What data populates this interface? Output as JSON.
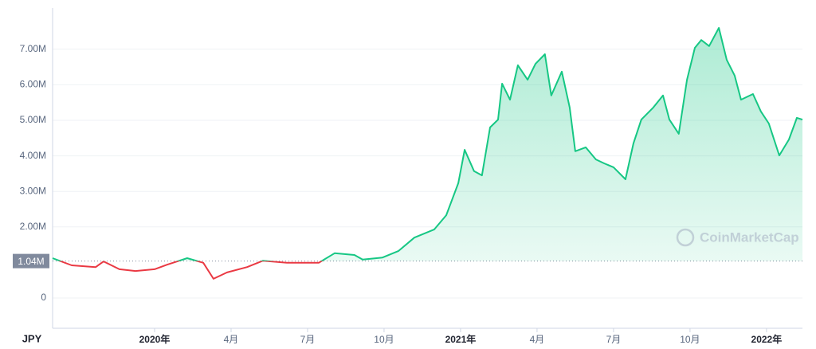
{
  "chart_data": {
    "type": "line",
    "y_axis_label": "JPY",
    "watermark": "CoinMarketCap",
    "reference_line": {
      "value": 1040000,
      "label": "1.04M"
    },
    "up_color": "#16c784",
    "down_color": "#ea3943",
    "grid": true,
    "xlim": [
      -4,
      25.41
    ],
    "xticks": [
      {
        "value": 0,
        "label": "2020年"
      },
      {
        "value": 3,
        "label": "4月"
      },
      {
        "value": 6,
        "label": "7月"
      },
      {
        "value": 9,
        "label": "10月"
      },
      {
        "value": 12,
        "label": "2021年"
      },
      {
        "value": 15,
        "label": "4月"
      },
      {
        "value": 18,
        "label": "7月"
      },
      {
        "value": 21,
        "label": "10月"
      },
      {
        "value": 24,
        "label": "2022年"
      }
    ],
    "ylim": [
      -852000,
      8161000
    ],
    "yticks": [
      0,
      {
        "value": 2000000,
        "label": "2.00M"
      },
      {
        "value": 3000000,
        "label": "3.00M"
      },
      {
        "value": 4000000,
        "label": "4.00M"
      },
      {
        "value": 5000000,
        "label": "5.00M"
      },
      {
        "value": 6000000,
        "label": "6.00M"
      },
      {
        "value": 7000000,
        "label": "7.00M"
      }
    ],
    "x": [
      -4.0,
      -3.25,
      -2.31,
      -2.0,
      -1.38,
      -0.75,
      0,
      0.5,
      1.28,
      1.91,
      2.31,
      2.84,
      3.63,
      4.25,
      5.19,
      6.44,
      7.06,
      7.84,
      8.16,
      8.94,
      9.56,
      10.19,
      10.97,
      11.44,
      11.91,
      12.16,
      12.53,
      12.84,
      13.16,
      13.47,
      13.63,
      13.94,
      14.25,
      14.63,
      14.94,
      15.31,
      15.56,
      15.97,
      16.28,
      16.5,
      16.91,
      17.31,
      17.63,
      18.0,
      18.47,
      18.78,
      19.09,
      19.56,
      19.94,
      20.19,
      20.56,
      20.88,
      21.19,
      21.44,
      21.75,
      22.13,
      22.44,
      22.75,
      23.0,
      23.47,
      23.78,
      24.09,
      24.5,
      24.88,
      25.19,
      25.41
    ],
    "values": [
      1120000,
      920000,
      870000,
      1030000,
      810000,
      760000,
      810000,
      940000,
      1120000,
      990000,
      540000,
      720000,
      870000,
      1050000,
      990000,
      990000,
      1260000,
      1210000,
      1080000,
      1140000,
      1320000,
      1700000,
      1930000,
      2330000,
      3230000,
      4170000,
      3570000,
      3450000,
      4800000,
      5020000,
      6030000,
      5580000,
      6550000,
      6140000,
      6590000,
      6860000,
      5700000,
      6370000,
      5360000,
      4130000,
      4240000,
      3900000,
      3790000,
      3680000,
      3340000,
      4350000,
      5020000,
      5360000,
      5700000,
      5020000,
      4620000,
      6140000,
      7040000,
      7260000,
      7090000,
      7600000,
      6700000,
      6260000,
      5580000,
      5740000,
      5250000,
      4910000,
      4010000,
      4460000,
      5070000,
      5020000
    ]
  }
}
